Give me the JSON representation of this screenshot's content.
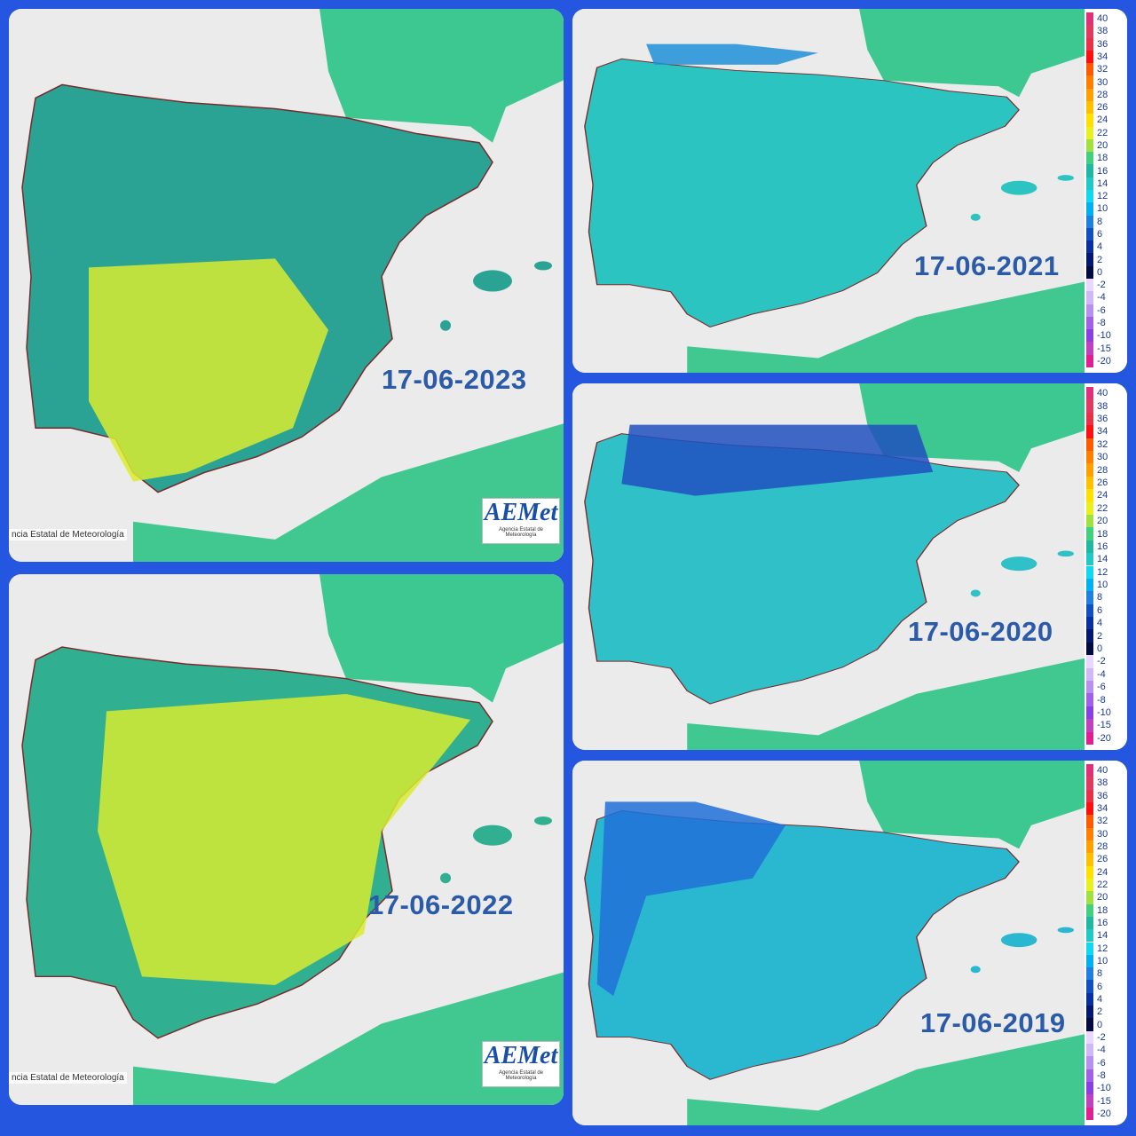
{
  "panels": [
    {
      "date": "17-06-2023",
      "footer": "ncia Estatal de Meteorología",
      "logo": "AEMet",
      "logo_sub": "Agencia Estatal de Meteorología"
    },
    {
      "date": "17-06-2022",
      "footer": "ncia Estatal de Meteorología",
      "logo": "AEMet",
      "logo_sub": "Agencia Estatal de Meteorología"
    },
    {
      "date": "17-06-2021"
    },
    {
      "date": "17-06-2020"
    },
    {
      "date": "17-06-2019"
    }
  ],
  "legend": {
    "labels": [
      40,
      38,
      36,
      34,
      32,
      30,
      28,
      26,
      24,
      22,
      20,
      18,
      16,
      14,
      12,
      10,
      8,
      6,
      4,
      2,
      0,
      -2,
      -4,
      -6,
      -8,
      -10,
      -15,
      -20
    ],
    "colors": [
      "#e0307a",
      "#e03a60",
      "#e83048",
      "#ff1010",
      "#ff5a00",
      "#ff8000",
      "#ffa000",
      "#ffc000",
      "#ffe000",
      "#e8f020",
      "#a0e040",
      "#40d080",
      "#20b8a0",
      "#20c8c8",
      "#10d8f0",
      "#00b0f0",
      "#2080e0",
      "#1050c0",
      "#0830a0",
      "#041870",
      "#020a40",
      "#e8d8ff",
      "#d0b8f8",
      "#b890f0",
      "#a060e8",
      "#8840e0",
      "#c040c0",
      "#e02090"
    ]
  }
}
